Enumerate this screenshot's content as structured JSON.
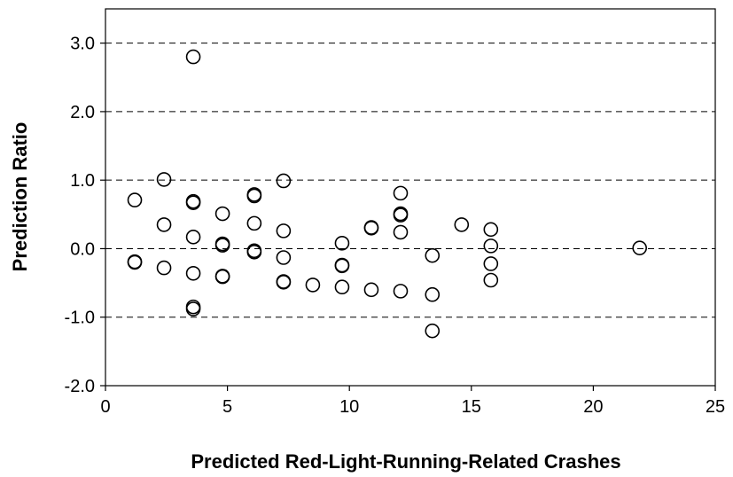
{
  "chart_data": {
    "type": "scatter",
    "title": "",
    "xlabel": "Predicted Red-Light-Running-Related Crashes",
    "ylabel": "Prediction Ratio",
    "xlim": [
      0,
      25
    ],
    "ylim": [
      -2.0,
      3.5
    ],
    "x_ticks": [
      0,
      5,
      10,
      15,
      20,
      25
    ],
    "x_tick_labels": [
      "0",
      "5",
      "10",
      "15",
      "20",
      "25"
    ],
    "y_ticks": [
      -2.0,
      -1.0,
      0.0,
      1.0,
      2.0,
      3.0
    ],
    "y_tick_labels": [
      "-2.0",
      "-1.0",
      "0.0",
      "1.0",
      "2.0",
      "3.0"
    ],
    "grid": "horizontal dashed",
    "legend": "none",
    "series": [
      {
        "marker": "open-circle",
        "points": [
          [
            1.2,
            0.71
          ],
          [
            1.2,
            -0.19
          ],
          [
            1.2,
            -0.2
          ],
          [
            2.4,
            1.01
          ],
          [
            2.4,
            0.35
          ],
          [
            2.4,
            -0.28
          ],
          [
            3.6,
            2.8
          ],
          [
            3.6,
            0.69
          ],
          [
            3.6,
            0.67
          ],
          [
            3.6,
            0.17
          ],
          [
            3.6,
            -0.36
          ],
          [
            3.6,
            -0.85
          ],
          [
            3.6,
            -0.88
          ],
          [
            4.8,
            0.51
          ],
          [
            4.8,
            0.07
          ],
          [
            4.8,
            0.05
          ],
          [
            4.8,
            -0.4
          ],
          [
            4.8,
            -0.41
          ],
          [
            6.1,
            0.79
          ],
          [
            6.1,
            0.77
          ],
          [
            6.1,
            0.37
          ],
          [
            6.1,
            -0.03
          ],
          [
            6.1,
            -0.05
          ],
          [
            7.3,
            0.99
          ],
          [
            7.3,
            0.26
          ],
          [
            7.3,
            -0.13
          ],
          [
            7.3,
            -0.48
          ],
          [
            7.3,
            -0.49
          ],
          [
            8.5,
            -0.53
          ],
          [
            9.7,
            0.08
          ],
          [
            9.7,
            -0.24
          ],
          [
            9.7,
            -0.25
          ],
          [
            9.7,
            -0.56
          ],
          [
            10.9,
            0.31
          ],
          [
            10.9,
            0.3
          ],
          [
            10.9,
            -0.6
          ],
          [
            12.1,
            0.81
          ],
          [
            12.1,
            0.51
          ],
          [
            12.1,
            0.49
          ],
          [
            12.1,
            0.24
          ],
          [
            12.1,
            -0.62
          ],
          [
            13.4,
            -0.1
          ],
          [
            13.4,
            -0.67
          ],
          [
            13.4,
            -1.2
          ],
          [
            14.6,
            0.35
          ],
          [
            15.8,
            0.28
          ],
          [
            15.8,
            0.04
          ],
          [
            15.8,
            -0.22
          ],
          [
            15.8,
            -0.46
          ],
          [
            21.9,
            0.01
          ]
        ]
      }
    ]
  }
}
